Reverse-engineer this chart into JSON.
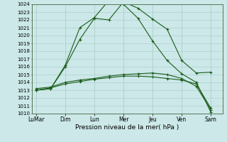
{
  "title": "",
  "xlabel": "Pression niveau de la mer( hPa )",
  "ylabel": "",
  "ylim": [
    1010,
    1024
  ],
  "yticks": [
    1010,
    1011,
    1012,
    1013,
    1014,
    1015,
    1016,
    1017,
    1018,
    1019,
    1020,
    1021,
    1022,
    1023,
    1024
  ],
  "x_day_labels": [
    "LuMar",
    "Dim",
    "Lun",
    "Mer",
    "Jeu",
    "Ven",
    "Sam"
  ],
  "x_day_positions": [
    0,
    2,
    4,
    6,
    8,
    10,
    12
  ],
  "background_color": "#cce8e8",
  "grid_color": "#b0d0d0",
  "line_color": "#1a5c1a",
  "series": [
    {
      "x": [
        0,
        1,
        2,
        3,
        4,
        5,
        6,
        7,
        8,
        9,
        10,
        11,
        12
      ],
      "y": [
        1013.0,
        1013.2,
        1016.0,
        1019.5,
        1022.2,
        1022.0,
        1024.3,
        1023.5,
        1022.1,
        1020.8,
        1016.8,
        1015.2,
        1015.3
      ],
      "marker": "+"
    },
    {
      "x": [
        0,
        1,
        2,
        3,
        4,
        5,
        6,
        7,
        8,
        9,
        10,
        11,
        12
      ],
      "y": [
        1013.0,
        1013.2,
        1016.2,
        1021.0,
        1022.3,
        1024.5,
        1024.0,
        1022.2,
        1019.3,
        1016.8,
        1015.1,
        1014.0,
        1010.2
      ],
      "marker": "+"
    },
    {
      "x": [
        0,
        1,
        2,
        3,
        4,
        5,
        6,
        7,
        8,
        9,
        10,
        11,
        12
      ],
      "y": [
        1013.2,
        1013.4,
        1014.0,
        1014.3,
        1014.5,
        1014.8,
        1015.0,
        1015.1,
        1015.2,
        1015.0,
        1014.5,
        1013.5,
        1010.5
      ],
      "marker": "+"
    },
    {
      "x": [
        0,
        1,
        2,
        3,
        4,
        5,
        6,
        7,
        8,
        9,
        10,
        11,
        12
      ],
      "y": [
        1013.0,
        1013.3,
        1013.8,
        1014.1,
        1014.4,
        1014.6,
        1014.8,
        1014.8,
        1014.7,
        1014.5,
        1014.3,
        1013.8,
        1010.7
      ],
      "marker": "+"
    }
  ]
}
